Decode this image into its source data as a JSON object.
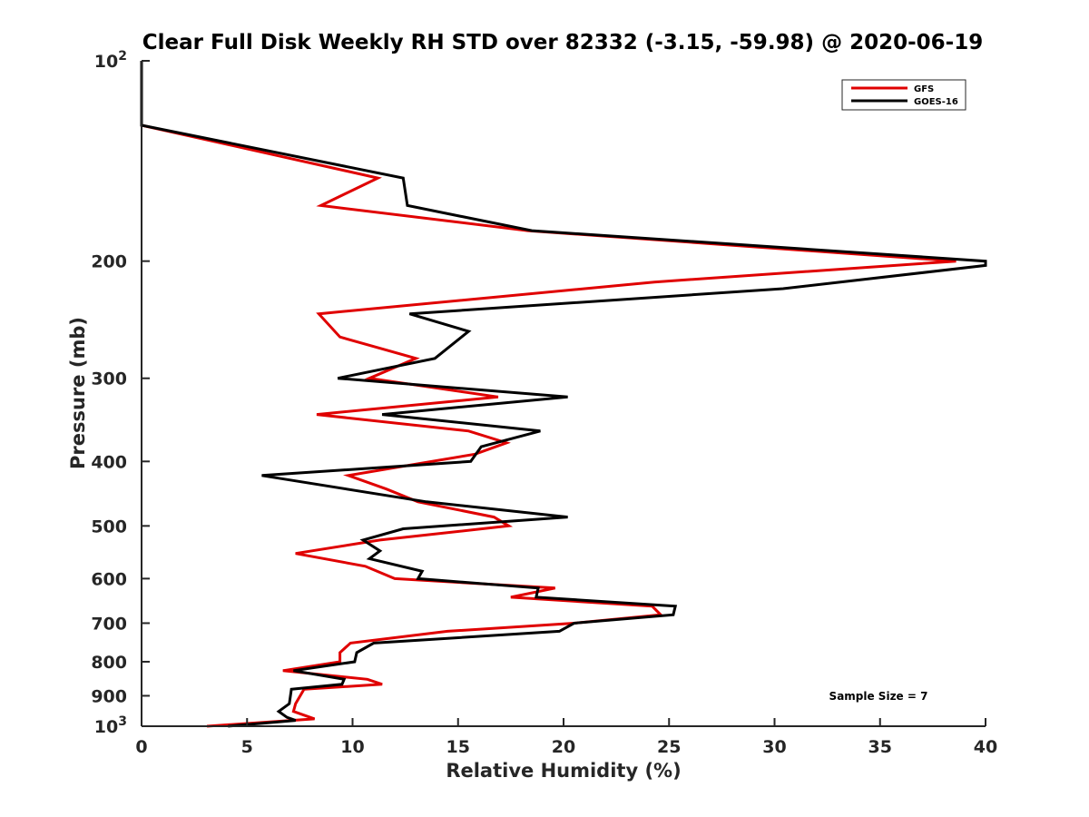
{
  "chart_data": {
    "type": "line",
    "title": "Clear Full Disk Weekly RH STD over 82332 (-3.15, -59.98) @ 2020-06-19",
    "xlabel": "Relative Humidity (%)",
    "ylabel": "Pressure (mb)",
    "xlim": [
      0,
      40
    ],
    "ylim": [
      100,
      1000
    ],
    "y_scale": "log",
    "y_reversed": true,
    "x_ticks": [
      "0",
      "5",
      "10",
      "15",
      "20",
      "25",
      "30",
      "35",
      "40"
    ],
    "x_tick_values": [
      0,
      5,
      10,
      15,
      20,
      25,
      30,
      35,
      40
    ],
    "y_ticks": [
      {
        "value": 100,
        "base": "10",
        "exp": "2"
      },
      {
        "value": 200,
        "label": "200"
      },
      {
        "value": 300,
        "label": "300"
      },
      {
        "value": 400,
        "label": "400"
      },
      {
        "value": 500,
        "label": "500"
      },
      {
        "value": 600,
        "label": "600"
      },
      {
        "value": 700,
        "label": "700"
      },
      {
        "value": 800,
        "label": "800"
      },
      {
        "value": 900,
        "label": "900"
      },
      {
        "value": 1000,
        "base": "10",
        "exp": "3"
      }
    ],
    "legend_position": "top-right",
    "annotation": "Sample Size = 7",
    "series": [
      {
        "name": "GFS",
        "color": "#e00000",
        "points": [
          {
            "rh": 0.0,
            "p": 100
          },
          {
            "rh": 0.0,
            "p": 125
          },
          {
            "rh": 11.2,
            "p": 150
          },
          {
            "rh": 8.5,
            "p": 165
          },
          {
            "rh": 18.3,
            "p": 180
          },
          {
            "rh": 38.6,
            "p": 200
          },
          {
            "rh": 24.3,
            "p": 215
          },
          {
            "rh": 8.4,
            "p": 240
          },
          {
            "rh": 9.4,
            "p": 260
          },
          {
            "rh": 13.0,
            "p": 280
          },
          {
            "rh": 10.8,
            "p": 300
          },
          {
            "rh": 16.9,
            "p": 320
          },
          {
            "rh": 8.3,
            "p": 340
          },
          {
            "rh": 15.5,
            "p": 360
          },
          {
            "rh": 17.3,
            "p": 375
          },
          {
            "rh": 15.8,
            "p": 390
          },
          {
            "rh": 9.8,
            "p": 420
          },
          {
            "rh": 11.6,
            "p": 440
          },
          {
            "rh": 13.1,
            "p": 460
          },
          {
            "rh": 16.7,
            "p": 485
          },
          {
            "rh": 17.4,
            "p": 500
          },
          {
            "rh": 11.3,
            "p": 525
          },
          {
            "rh": 7.3,
            "p": 550
          },
          {
            "rh": 10.6,
            "p": 575
          },
          {
            "rh": 12.0,
            "p": 600
          },
          {
            "rh": 19.6,
            "p": 620
          },
          {
            "rh": 17.5,
            "p": 640
          },
          {
            "rh": 24.2,
            "p": 660
          },
          {
            "rh": 24.6,
            "p": 680
          },
          {
            "rh": 20.5,
            "p": 700
          },
          {
            "rh": 14.5,
            "p": 720
          },
          {
            "rh": 9.9,
            "p": 750
          },
          {
            "rh": 9.4,
            "p": 775
          },
          {
            "rh": 9.4,
            "p": 800
          },
          {
            "rh": 6.7,
            "p": 825
          },
          {
            "rh": 10.7,
            "p": 850
          },
          {
            "rh": 11.4,
            "p": 865
          },
          {
            "rh": 7.7,
            "p": 880
          },
          {
            "rh": 7.3,
            "p": 925
          },
          {
            "rh": 7.2,
            "p": 950
          },
          {
            "rh": 8.2,
            "p": 975
          },
          {
            "rh": 3.1,
            "p": 1000
          }
        ]
      },
      {
        "name": "GOES-16",
        "color": "#000000",
        "points": [
          {
            "rh": 0.0,
            "p": 100
          },
          {
            "rh": 0.0,
            "p": 125
          },
          {
            "rh": 12.4,
            "p": 150
          },
          {
            "rh": 12.6,
            "p": 165
          },
          {
            "rh": 18.5,
            "p": 180
          },
          {
            "rh": 40.0,
            "p": 200
          },
          {
            "rh": 40.0,
            "p": 203
          },
          {
            "rh": 30.4,
            "p": 220
          },
          {
            "rh": 12.7,
            "p": 240
          },
          {
            "rh": 15.5,
            "p": 255
          },
          {
            "rh": 13.9,
            "p": 280
          },
          {
            "rh": 9.3,
            "p": 300
          },
          {
            "rh": 20.2,
            "p": 320
          },
          {
            "rh": 11.4,
            "p": 340
          },
          {
            "rh": 18.9,
            "p": 360
          },
          {
            "rh": 16.1,
            "p": 380
          },
          {
            "rh": 15.6,
            "p": 400
          },
          {
            "rh": 5.7,
            "p": 420
          },
          {
            "rh": 13.5,
            "p": 460
          },
          {
            "rh": 20.2,
            "p": 485
          },
          {
            "rh": 12.4,
            "p": 505
          },
          {
            "rh": 10.5,
            "p": 525
          },
          {
            "rh": 11.3,
            "p": 545
          },
          {
            "rh": 10.8,
            "p": 560
          },
          {
            "rh": 13.3,
            "p": 585
          },
          {
            "rh": 13.1,
            "p": 600
          },
          {
            "rh": 18.8,
            "p": 620
          },
          {
            "rh": 18.7,
            "p": 640
          },
          {
            "rh": 25.3,
            "p": 660
          },
          {
            "rh": 25.2,
            "p": 680
          },
          {
            "rh": 20.5,
            "p": 700
          },
          {
            "rh": 19.8,
            "p": 720
          },
          {
            "rh": 11.0,
            "p": 750
          },
          {
            "rh": 10.2,
            "p": 775
          },
          {
            "rh": 10.1,
            "p": 800
          },
          {
            "rh": 7.2,
            "p": 825
          },
          {
            "rh": 9.6,
            "p": 850
          },
          {
            "rh": 9.5,
            "p": 865
          },
          {
            "rh": 7.1,
            "p": 880
          },
          {
            "rh": 7.0,
            "p": 925
          },
          {
            "rh": 6.5,
            "p": 950
          },
          {
            "rh": 6.9,
            "p": 970
          },
          {
            "rh": 7.3,
            "p": 980
          },
          {
            "rh": 4.1,
            "p": 1000
          }
        ]
      }
    ]
  }
}
